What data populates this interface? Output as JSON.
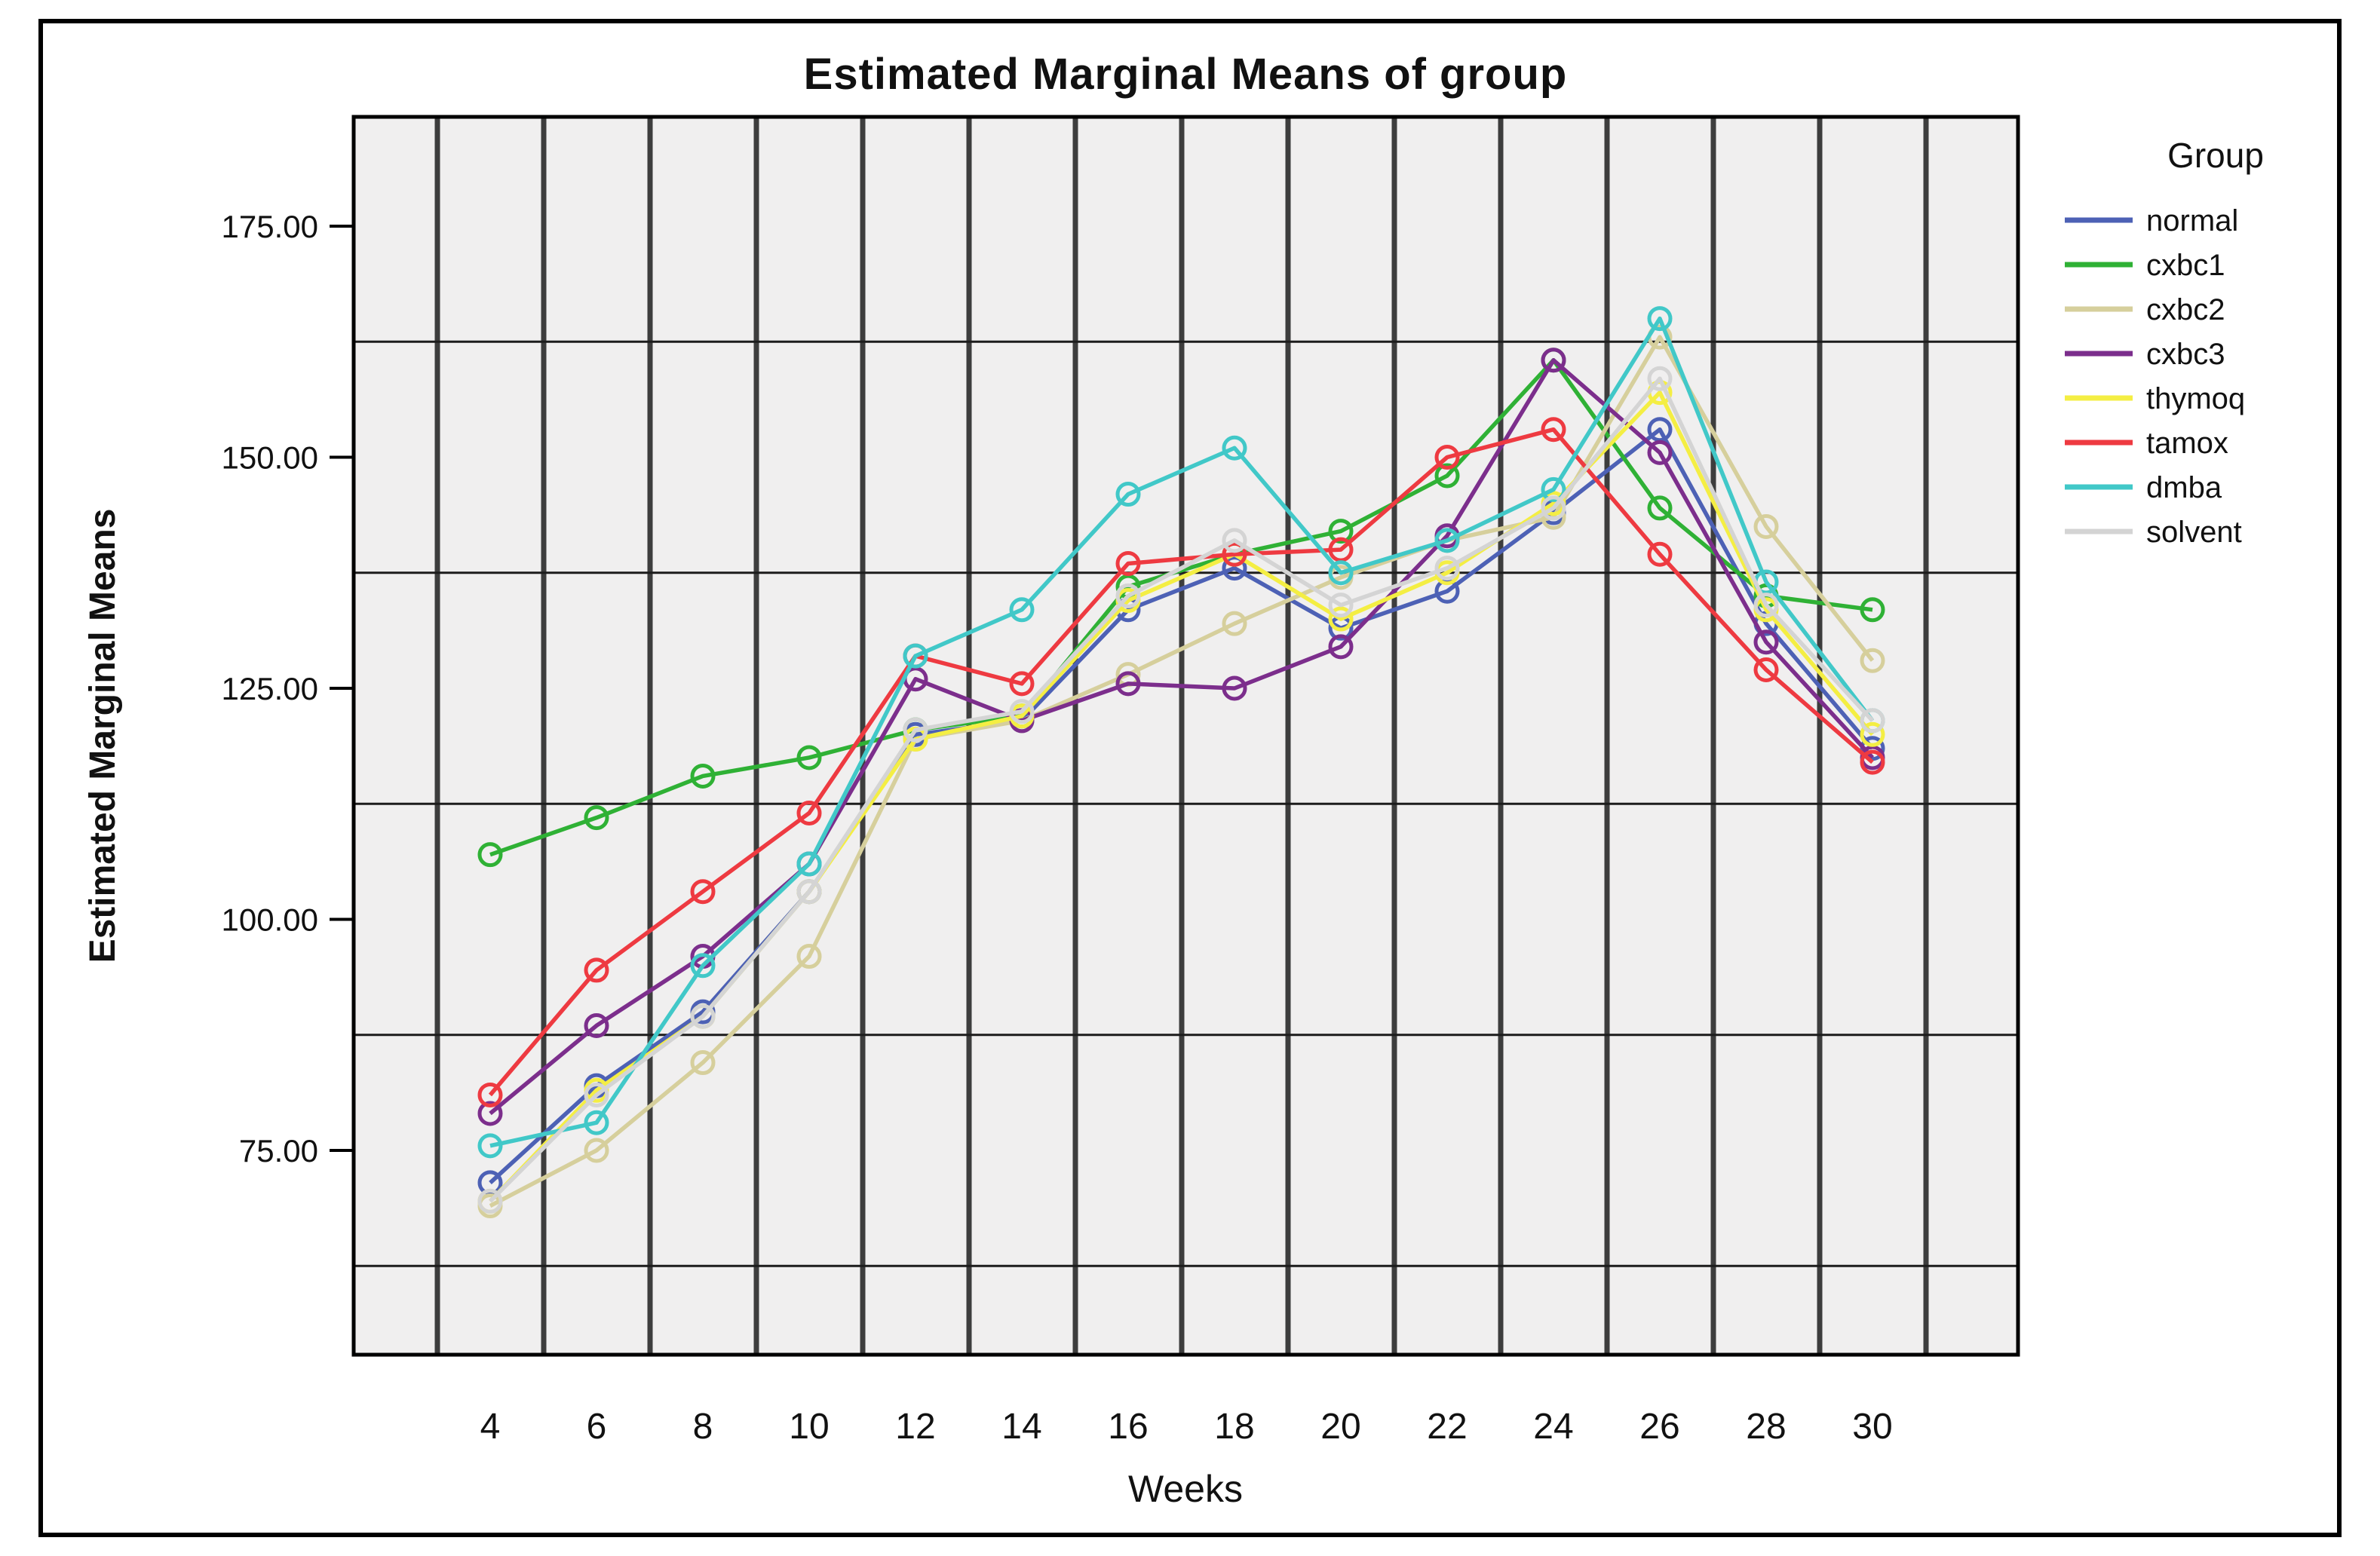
{
  "figure": {
    "title": "Estimated Marginal Means of group",
    "x_axis_label": "Weeks",
    "y_axis_label": "Estimated Marginal Means",
    "legend_title": "Group"
  },
  "chart_data": {
    "type": "line",
    "title": "Estimated Marginal Means of group",
    "xlabel": "Weeks",
    "ylabel": "Estimated Marginal Means",
    "legend_title": "Group",
    "legend_position": "right",
    "grid": "on",
    "plot_background": "#f0efef",
    "x": [
      4,
      6,
      8,
      10,
      12,
      14,
      16,
      18,
      20,
      22,
      24,
      26,
      28,
      30
    ],
    "x_tick_labels": [
      "4",
      "6",
      "8",
      "10",
      "12",
      "14",
      "16",
      "18",
      "20",
      "22",
      "24",
      "26",
      "28",
      "30"
    ],
    "y_tick_values": [
      175,
      150,
      125,
      100,
      75
    ],
    "y_tick_labels": [
      "175.00",
      "150.00",
      "125.00",
      "100.00",
      "75.00"
    ],
    "y_gridline_values": [
      162.5,
      137.5,
      112.5,
      87.5,
      62.5
    ],
    "ylim": [
      52.9,
      186.8
    ],
    "series": [
      {
        "name": "normal",
        "color": "#4d61b5",
        "values": [
          71.5,
          82,
          90,
          103,
          120,
          121.5,
          133.5,
          138,
          131.5,
          135.5,
          144,
          153,
          132,
          118.5
        ]
      },
      {
        "name": "cxbc1",
        "color": "#2fb135",
        "values": [
          107,
          111,
          115.5,
          117.5,
          120.5,
          122,
          136,
          139.5,
          142,
          148,
          160.5,
          144.5,
          135,
          133.5
        ]
      },
      {
        "name": "cxbc2",
        "color": "#d6cf9c",
        "values": [
          69,
          75,
          84.5,
          96,
          119.5,
          121.5,
          126.5,
          132,
          137,
          141,
          143.5,
          163,
          142.5,
          128
        ]
      },
      {
        "name": "cxbc3",
        "color": "#7c2e8c",
        "values": [
          79,
          88.5,
          96,
          106,
          126,
          121.5,
          125.5,
          125,
          129.5,
          141.5,
          160.5,
          150.5,
          130,
          117.5
        ]
      },
      {
        "name": "thymoq",
        "color": "#f4ee43",
        "values": [
          69.5,
          81.5,
          89.5,
          103,
          119.5,
          122,
          134.5,
          139.5,
          132.5,
          137.5,
          145,
          157,
          133.5,
          120
        ]
      },
      {
        "name": "tamox",
        "color": "#ee3a41",
        "values": [
          81,
          94.5,
          103,
          111.5,
          128.5,
          125.5,
          138.5,
          139.5,
          140,
          150,
          153,
          139.5,
          127,
          117
        ]
      },
      {
        "name": "dmba",
        "color": "#41c8c8",
        "values": [
          75.5,
          78,
          95,
          106,
          128.5,
          133.5,
          146,
          151,
          137.5,
          141,
          146.5,
          165,
          136.5,
          121.5
        ]
      },
      {
        "name": "solvent",
        "color": "#d4d4d4",
        "values": [
          69.5,
          81,
          89.5,
          103,
          120.5,
          122.5,
          135,
          141,
          134,
          138,
          144.5,
          158.5,
          134,
          121.5
        ]
      }
    ]
  }
}
